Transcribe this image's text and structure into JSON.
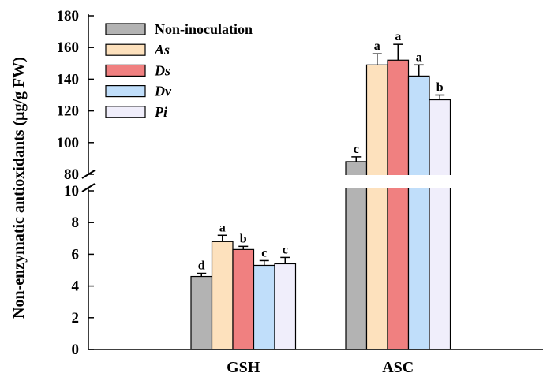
{
  "chart_data": {
    "type": "bar",
    "ylabel": "Non-enzymatic antioxidants (μg/g FW)",
    "categories": [
      "GSH",
      "ASC"
    ],
    "axis_break": {
      "lower_range": [
        0,
        10
      ],
      "upper_range": [
        80,
        180
      ]
    },
    "lower_ticks": [
      "0",
      "2",
      "4",
      "6",
      "8",
      "10"
    ],
    "upper_ticks": [
      "80",
      "100",
      "120",
      "140",
      "160",
      "180"
    ],
    "legend_position": "top-left",
    "series": [
      {
        "name": "Non-inoculation",
        "italic": false,
        "color": "#b3b3b3",
        "values": [
          4.6,
          88
        ],
        "errors": [
          0.2,
          3
        ],
        "letters": [
          "d",
          "c"
        ]
      },
      {
        "name": "As",
        "italic": true,
        "color": "#fde1bd",
        "values": [
          6.8,
          149
        ],
        "errors": [
          0.4,
          7
        ],
        "letters": [
          "a",
          "a"
        ]
      },
      {
        "name": "Ds",
        "italic": true,
        "color": "#f08080",
        "values": [
          6.3,
          152
        ],
        "errors": [
          0.2,
          10
        ],
        "letters": [
          "b",
          "a"
        ]
      },
      {
        "name": "Dv",
        "italic": true,
        "color": "#c0defa",
        "values": [
          5.3,
          142
        ],
        "errors": [
          0.3,
          7
        ],
        "letters": [
          "c",
          "a"
        ]
      },
      {
        "name": "Pi",
        "italic": true,
        "color": "#f0eefb",
        "values": [
          5.4,
          127
        ],
        "errors": [
          0.4,
          3
        ],
        "letters": [
          "c",
          "b"
        ]
      }
    ]
  }
}
